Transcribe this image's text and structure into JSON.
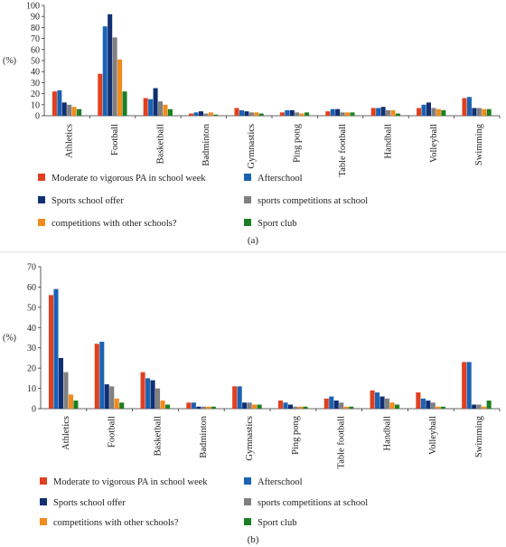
{
  "chart_data": [
    {
      "type": "bar",
      "panel_label": "(a)",
      "ylabel": "(%)",
      "ylim": [
        0,
        100
      ],
      "yticks": [
        0,
        10,
        20,
        30,
        40,
        50,
        60,
        70,
        80,
        90,
        100
      ],
      "grid": false,
      "legend_position": "bottom",
      "categories": [
        "Athletics",
        "Football",
        "Basketball",
        "Badminton",
        "Gymnastics",
        "Ping pong",
        "Table football",
        "Handball",
        "Volleyball",
        "Swimming"
      ],
      "series": [
        {
          "name": "Moderate to vigorous PA in school week",
          "color": "#e0401f",
          "values": [
            22,
            38,
            16,
            2,
            7,
            3,
            4,
            7,
            7,
            16
          ]
        },
        {
          "name": "Afterschool",
          "color": "#1a63b4",
          "values": [
            23,
            81,
            15,
            3,
            5,
            5,
            6,
            7,
            10,
            17
          ]
        },
        {
          "name": "Sports school offer",
          "color": "#112f73",
          "values": [
            12,
            92,
            25,
            4,
            4,
            5,
            6,
            8,
            12,
            7
          ]
        },
        {
          "name": "sports competitions at school",
          "color": "#808080",
          "values": [
            10,
            71,
            13,
            2,
            3,
            3,
            3,
            5,
            7,
            7
          ]
        },
        {
          "name": "competitions with other schools?",
          "color": "#f28a1c",
          "values": [
            8,
            51,
            10,
            3,
            3,
            2,
            3,
            5,
            6,
            6
          ]
        },
        {
          "name": "Sport club",
          "color": "#1c7f22",
          "values": [
            6,
            22,
            6,
            1,
            2,
            3,
            3,
            2,
            5,
            6
          ]
        }
      ]
    },
    {
      "type": "bar",
      "panel_label": "(b)",
      "ylabel": "(%)",
      "ylim": [
        0,
        70
      ],
      "yticks": [
        0,
        10,
        20,
        30,
        40,
        50,
        60,
        70
      ],
      "grid": false,
      "legend_position": "bottom",
      "categories": [
        "Athletics",
        "Football",
        "Basketball",
        "Badminton",
        "Gymnastics",
        "Ping pong",
        "Table football",
        "Handball",
        "Volleyball",
        "Swimming"
      ],
      "series": [
        {
          "name": "Moderate to vigorous PA in school week",
          "color": "#e0401f",
          "values": [
            56,
            32,
            18,
            3,
            11,
            4,
            5,
            9,
            8,
            23
          ]
        },
        {
          "name": "Afterschool",
          "color": "#1a63b4",
          "values": [
            59,
            33,
            15,
            3,
            11,
            3,
            6,
            8,
            5,
            23
          ]
        },
        {
          "name": "Sports school offer",
          "color": "#112f73",
          "values": [
            25,
            12,
            14,
            1,
            3,
            2,
            4,
            6,
            4,
            2
          ]
        },
        {
          "name": "sports competitions at school",
          "color": "#808080",
          "values": [
            18,
            11,
            10,
            1,
            3,
            1,
            3,
            5,
            3,
            2
          ]
        },
        {
          "name": "competitions with other schools?",
          "color": "#f28a1c",
          "values": [
            7,
            5,
            4,
            1,
            2,
            1,
            1,
            3,
            1,
            1
          ]
        },
        {
          "name": "Sport club",
          "color": "#1c7f22",
          "values": [
            4,
            3,
            2,
            1,
            2,
            1,
            1,
            2,
            1,
            4
          ]
        }
      ]
    }
  ]
}
